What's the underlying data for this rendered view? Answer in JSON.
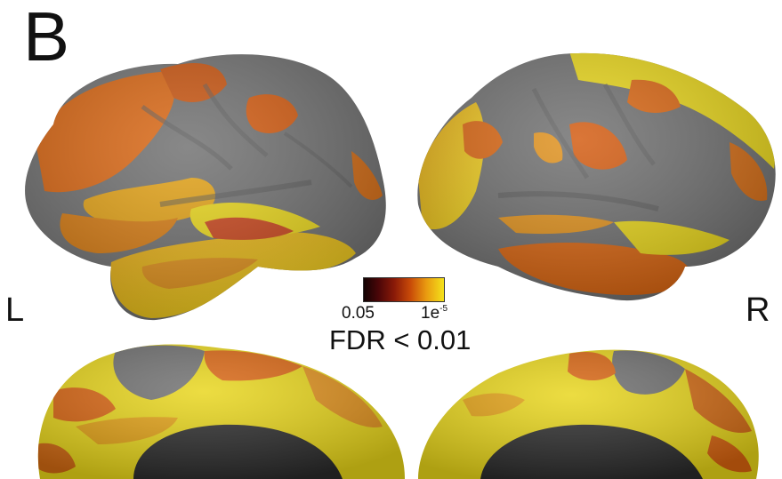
{
  "panel_label": "B",
  "hemisphere_left_label": "L",
  "hemisphere_right_label": "R",
  "colorbar": {
    "low_label": "0.05",
    "high_label_base": "1e",
    "high_label_exponent": "-5",
    "threshold_label": "FDR < 0.01",
    "colors": [
      "#120303",
      "#4a0608",
      "#8a1a08",
      "#c84a08",
      "#e99a10",
      "#f4e21a"
    ]
  },
  "colors": {
    "cortex_gray": "#6e6e6e",
    "significant_orange": "#d9640f",
    "significant_yellow": "#e8d518",
    "medial_wall": "#2a2a2a"
  }
}
